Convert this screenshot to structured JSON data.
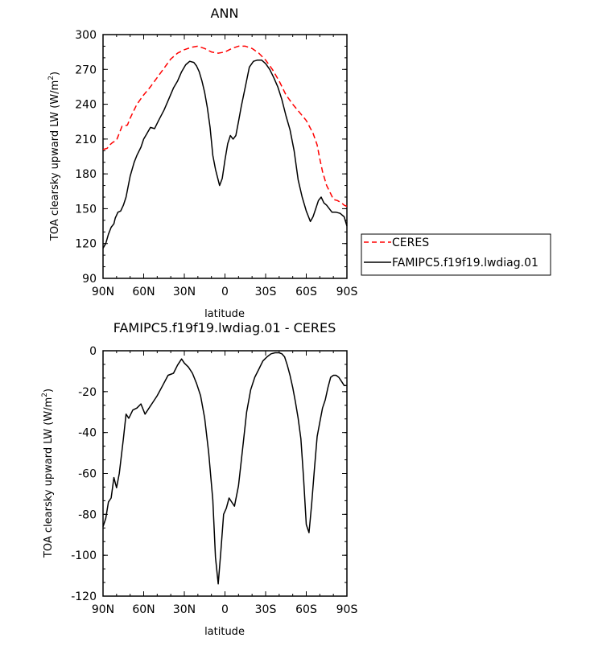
{
  "chart_data": [
    {
      "type": "line",
      "title": "ANN",
      "xlabel": "latitude",
      "ylabel": "TOA clearsky upward LW (W/m",
      "ylabel_sup": "2",
      "ylabel_close": ")",
      "xlim": [
        90,
        -90
      ],
      "ylim": [
        90,
        300
      ],
      "xticks": [
        {
          "value": 90,
          "label": "90N"
        },
        {
          "value": 60,
          "label": "60N"
        },
        {
          "value": 30,
          "label": "30N"
        },
        {
          "value": 0,
          "label": "0"
        },
        {
          "value": -30,
          "label": "30S"
        },
        {
          "value": -60,
          "label": "60S"
        },
        {
          "value": -90,
          "label": "90S"
        }
      ],
      "yticks": [
        90,
        120,
        150,
        180,
        210,
        240,
        270,
        300
      ],
      "legend": {
        "placement": "right",
        "entries": [
          "CERES",
          "FAMIPC5.f19f19.lwdiag.01"
        ]
      },
      "series": [
        {
          "name": "CERES",
          "color": "#ff0000",
          "dash": true,
          "x": [
            90,
            87,
            85,
            83,
            80,
            78,
            76,
            72,
            70,
            65,
            60,
            55,
            50,
            45,
            40,
            35,
            30,
            25,
            20,
            15,
            10,
            5,
            0,
            -5,
            -10,
            -15,
            -20,
            -25,
            -30,
            -35,
            -40,
            -45,
            -50,
            -55,
            -60,
            -65,
            -68,
            -70,
            -72,
            -75,
            -78,
            -80,
            -83,
            -86,
            -88,
            -90
          ],
          "values": [
            201,
            202,
            205,
            207,
            209,
            215,
            221,
            222,
            228,
            240,
            248,
            255,
            263,
            271,
            279,
            284,
            287,
            289,
            290,
            288,
            285,
            284,
            285,
            288,
            290,
            290,
            288,
            284,
            278,
            270,
            260,
            248,
            240,
            233,
            226,
            215,
            205,
            193,
            182,
            170,
            163,
            158,
            157,
            155,
            153,
            152
          ]
        },
        {
          "name": "FAMIPC5.f19f19.lwdiag.01",
          "color": "#000000",
          "dash": false,
          "x": [
            90,
            88,
            86,
            84,
            82,
            81,
            79,
            77,
            75,
            73,
            70,
            67,
            65,
            62,
            60,
            58,
            55,
            52,
            49,
            45,
            42,
            38,
            35,
            32,
            29,
            26,
            23,
            21,
            19,
            17,
            15,
            13,
            11,
            9,
            7,
            4,
            2,
            0,
            -2,
            -4,
            -6,
            -8,
            -10,
            -12,
            -15,
            -18,
            -21,
            -24,
            -27,
            -30,
            -33,
            -36,
            -39,
            -42,
            -45,
            -48,
            -51,
            -54,
            -57,
            -59,
            -60,
            -61,
            -63,
            -65,
            -67,
            -69,
            -71,
            -73,
            -75,
            -77,
            -79,
            -82,
            -85,
            -88,
            -90
          ],
          "values": [
            116,
            120,
            128,
            134,
            137,
            142,
            147,
            148,
            153,
            160,
            178,
            190,
            196,
            203,
            210,
            214,
            220,
            219,
            226,
            235,
            243,
            254,
            260,
            268,
            274,
            277,
            276,
            273,
            268,
            260,
            250,
            237,
            220,
            196,
            184,
            170,
            176,
            192,
            206,
            213,
            210,
            213,
            225,
            238,
            255,
            272,
            277,
            278,
            278,
            275,
            270,
            263,
            255,
            244,
            230,
            218,
            200,
            175,
            160,
            152,
            148,
            145,
            139,
            143,
            150,
            157,
            160,
            155,
            153,
            150,
            147,
            147,
            146,
            143,
            135
          ]
        }
      ]
    },
    {
      "type": "line",
      "title": "FAMIPC5.f19f19.lwdiag.01 - CERES",
      "xlabel": "latitude",
      "ylabel": "TOA clearsky upward LW (W/m",
      "ylabel_sup": "2",
      "ylabel_close": ")",
      "xlim": [
        90,
        -90
      ],
      "ylim": [
        -120,
        0
      ],
      "xticks": [
        {
          "value": 90,
          "label": "90N"
        },
        {
          "value": 60,
          "label": "60N"
        },
        {
          "value": 30,
          "label": "30N"
        },
        {
          "value": 0,
          "label": "0"
        },
        {
          "value": -30,
          "label": "30S"
        },
        {
          "value": -60,
          "label": "60S"
        },
        {
          "value": -90,
          "label": "90S"
        }
      ],
      "yticks": [
        0,
        -20,
        -40,
        -60,
        -80,
        -100,
        -120
      ],
      "series": [
        {
          "name": "",
          "color": "#000000",
          "dash": false,
          "x": [
            90,
            88,
            86,
            84,
            82,
            80,
            78,
            75,
            73,
            71,
            68,
            65,
            62,
            59,
            56,
            53,
            50,
            46,
            42,
            38,
            35,
            32,
            30,
            27,
            24,
            21,
            18,
            15,
            12,
            9,
            7,
            5,
            3,
            1,
            -1,
            -3,
            -5,
            -7,
            -10,
            -13,
            -16,
            -19,
            -22,
            -25,
            -28,
            -31,
            -34,
            -37,
            -40,
            -42,
            -44,
            -46,
            -48,
            -50,
            -52,
            -54,
            -56,
            -58,
            -60,
            -62,
            -64,
            -66,
            -68,
            -70,
            -72,
            -74,
            -76,
            -78,
            -80,
            -82,
            -84,
            -86,
            -88,
            -90
          ],
          "values": [
            -86,
            -82,
            -74,
            -72,
            -62,
            -67,
            -60,
            -43,
            -31,
            -33,
            -29,
            -28,
            -26,
            -31,
            -28,
            -25,
            -22,
            -17,
            -12,
            -11,
            -7,
            -4,
            -6,
            -8,
            -11,
            -16,
            -22,
            -33,
            -50,
            -73,
            -101,
            -114,
            -98,
            -80,
            -77,
            -72,
            -74,
            -76,
            -66,
            -48,
            -30,
            -19,
            -13,
            -9,
            -5,
            -3,
            -1.5,
            -1,
            -1,
            -1.5,
            -3,
            -7,
            -12,
            -18,
            -25,
            -33,
            -43,
            -62,
            -85,
            -89,
            -75,
            -58,
            -42,
            -35,
            -28,
            -24,
            -18,
            -13,
            -12,
            -12,
            -13,
            -15,
            -17,
            -17
          ]
        }
      ]
    }
  ]
}
